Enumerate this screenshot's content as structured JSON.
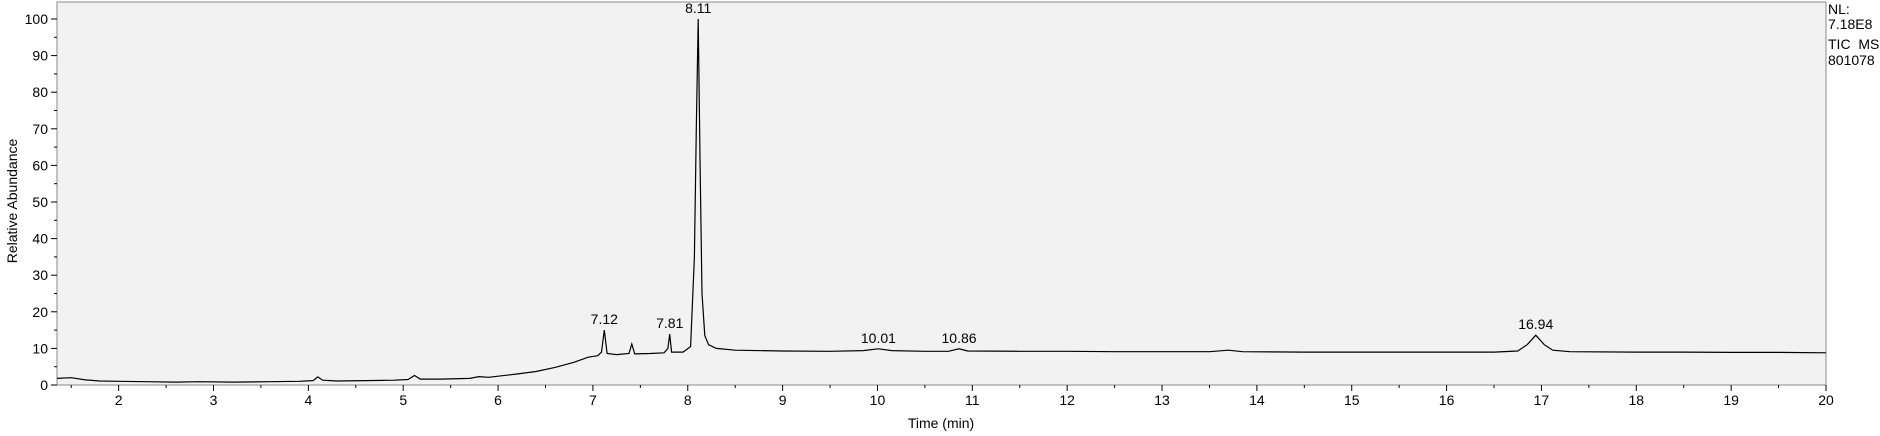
{
  "chart_data": {
    "type": "line",
    "title": "",
    "xlabel": "Time (min)",
    "ylabel": "Relative Abundance",
    "xlim": [
      1.35,
      20.0
    ],
    "ylim": [
      0,
      102
    ],
    "x_ticks": [
      2,
      3,
      4,
      5,
      6,
      7,
      8,
      9,
      10,
      11,
      12,
      13,
      14,
      15,
      16,
      17,
      18,
      19,
      20
    ],
    "y_ticks": [
      0,
      10,
      20,
      30,
      40,
      50,
      60,
      70,
      80,
      90,
      100
    ],
    "grid": false,
    "info": {
      "nl_label": "NL:",
      "nl_value": "7.18E8",
      "trace": "TIC  MS",
      "sample": "801078"
    },
    "series": [
      {
        "points": [
          [
            1.35,
            1.8
          ],
          [
            1.5,
            2.0
          ],
          [
            1.65,
            1.4
          ],
          [
            1.8,
            1.1
          ],
          [
            2.0,
            1.0
          ],
          [
            2.3,
            0.9
          ],
          [
            2.6,
            0.8
          ],
          [
            2.85,
            0.9
          ],
          [
            3.2,
            0.8
          ],
          [
            3.6,
            0.9
          ],
          [
            3.9,
            1.0
          ],
          [
            4.05,
            1.2
          ],
          [
            4.1,
            2.2
          ],
          [
            4.15,
            1.3
          ],
          [
            4.3,
            1.1
          ],
          [
            4.6,
            1.2
          ],
          [
            4.9,
            1.3
          ],
          [
            5.05,
            1.5
          ],
          [
            5.12,
            2.6
          ],
          [
            5.18,
            1.6
          ],
          [
            5.4,
            1.6
          ],
          [
            5.7,
            1.8
          ],
          [
            5.8,
            2.3
          ],
          [
            5.9,
            2.1
          ],
          [
            6.0,
            2.4
          ],
          [
            6.2,
            3.0
          ],
          [
            6.4,
            3.7
          ],
          [
            6.6,
            4.8
          ],
          [
            6.8,
            6.2
          ],
          [
            6.95,
            7.6
          ],
          [
            7.05,
            8.0
          ],
          [
            7.09,
            9.0
          ],
          [
            7.12,
            15.0
          ],
          [
            7.15,
            8.6
          ],
          [
            7.25,
            8.3
          ],
          [
            7.38,
            8.6
          ],
          [
            7.41,
            11.2
          ],
          [
            7.44,
            8.5
          ],
          [
            7.6,
            8.6
          ],
          [
            7.75,
            8.8
          ],
          [
            7.79,
            10.0
          ],
          [
            7.81,
            13.9
          ],
          [
            7.83,
            9.0
          ],
          [
            7.95,
            9.0
          ],
          [
            8.03,
            10.5
          ],
          [
            8.07,
            35.0
          ],
          [
            8.09,
            70.0
          ],
          [
            8.11,
            100.0
          ],
          [
            8.13,
            60.0
          ],
          [
            8.15,
            25.0
          ],
          [
            8.18,
            13.5
          ],
          [
            8.22,
            11.0
          ],
          [
            8.3,
            10.0
          ],
          [
            8.5,
            9.5
          ],
          [
            9.0,
            9.3
          ],
          [
            9.5,
            9.2
          ],
          [
            9.85,
            9.4
          ],
          [
            10.01,
            9.9
          ],
          [
            10.15,
            9.4
          ],
          [
            10.5,
            9.2
          ],
          [
            10.75,
            9.2
          ],
          [
            10.86,
            9.9
          ],
          [
            10.95,
            9.3
          ],
          [
            11.5,
            9.2
          ],
          [
            12.0,
            9.2
          ],
          [
            12.5,
            9.1
          ],
          [
            13.0,
            9.1
          ],
          [
            13.5,
            9.1
          ],
          [
            13.7,
            9.5
          ],
          [
            13.85,
            9.1
          ],
          [
            14.5,
            9.0
          ],
          [
            15.0,
            9.0
          ],
          [
            15.5,
            9.0
          ],
          [
            16.0,
            9.0
          ],
          [
            16.5,
            9.0
          ],
          [
            16.75,
            9.3
          ],
          [
            16.85,
            11.0
          ],
          [
            16.94,
            13.6
          ],
          [
            17.03,
            11.0
          ],
          [
            17.12,
            9.5
          ],
          [
            17.3,
            9.1
          ],
          [
            18.0,
            9.0
          ],
          [
            18.5,
            9.0
          ],
          [
            19.0,
            8.9
          ],
          [
            19.5,
            8.9
          ],
          [
            20.0,
            8.8
          ]
        ]
      }
    ],
    "peak_labels": [
      {
        "x": 7.12,
        "y": 15.0,
        "text": "7.12"
      },
      {
        "x": 7.81,
        "y": 13.9,
        "text": "7.81"
      },
      {
        "x": 8.11,
        "y": 100.0,
        "text": "8.11"
      },
      {
        "x": 10.01,
        "y": 9.9,
        "text": "10.01"
      },
      {
        "x": 10.86,
        "y": 9.9,
        "text": "10.86"
      },
      {
        "x": 16.94,
        "y": 13.6,
        "text": "16.94"
      }
    ]
  }
}
